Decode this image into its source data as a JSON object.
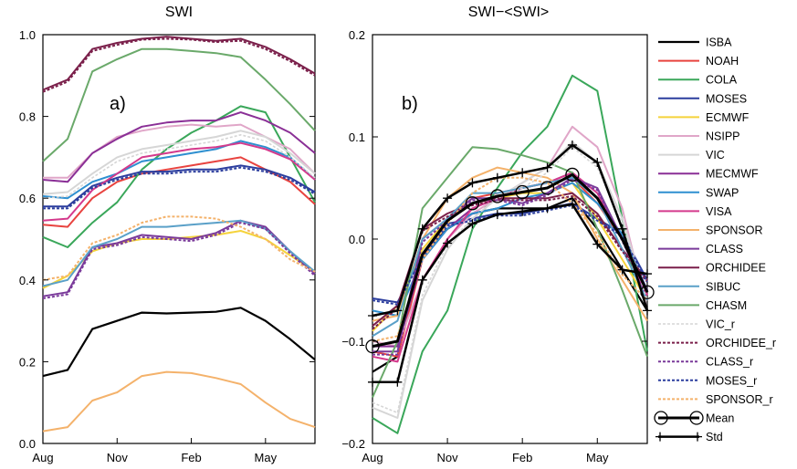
{
  "chart_data": [
    {
      "type": "line",
      "panel_label": "a)",
      "title": "SWI",
      "xlabel": "",
      "ylabel": "",
      "x_ticks": [
        "Aug",
        "Nov",
        "Feb",
        "May"
      ],
      "x": [
        1,
        2,
        3,
        4,
        5,
        6,
        7,
        8,
        9,
        10,
        11,
        12
      ],
      "ylim": [
        0.0,
        1.0
      ],
      "y_ticks": [
        "0.0",
        "0.2",
        "0.4",
        "0.6",
        "0.8",
        "1.0"
      ],
      "series": [
        {
          "name": "ISBA",
          "color": "#000000",
          "width": 2.2,
          "dash": "",
          "values": [
            0.165,
            0.18,
            0.28,
            0.3,
            0.32,
            0.318,
            0.32,
            0.322,
            0.332,
            0.3,
            0.255,
            0.205
          ]
        },
        {
          "name": "NOAH",
          "color": "#e8433f",
          "width": 2,
          "dash": "",
          "values": [
            0.535,
            0.53,
            0.6,
            0.64,
            0.66,
            0.67,
            0.68,
            0.69,
            0.7,
            0.67,
            0.64,
            0.585
          ]
        },
        {
          "name": "COLA",
          "color": "#3aa75a",
          "width": 2,
          "dash": "",
          "values": [
            0.505,
            0.48,
            0.54,
            0.59,
            0.67,
            0.72,
            0.76,
            0.79,
            0.825,
            0.81,
            0.7,
            0.59
          ]
        },
        {
          "name": "MOSES",
          "color": "#2c3e9e",
          "width": 2,
          "dash": "",
          "values": [
            0.58,
            0.58,
            0.63,
            0.65,
            0.665,
            0.665,
            0.67,
            0.67,
            0.68,
            0.67,
            0.65,
            0.615
          ]
        },
        {
          "name": "ECMWF",
          "color": "#f5d33b",
          "width": 2,
          "dash": "",
          "values": [
            0.38,
            0.41,
            0.47,
            0.49,
            0.5,
            0.5,
            0.505,
            0.51,
            0.52,
            0.5,
            0.46,
            0.42
          ]
        },
        {
          "name": "NSIPP",
          "color": "#e0a6c8",
          "width": 2,
          "dash": "",
          "values": [
            0.65,
            0.65,
            0.71,
            0.75,
            0.765,
            0.775,
            0.78,
            0.775,
            0.78,
            0.75,
            0.72,
            0.66
          ]
        },
        {
          "name": "VIC",
          "color": "#d6d6d6",
          "width": 2,
          "dash": "",
          "values": [
            0.61,
            0.615,
            0.66,
            0.7,
            0.72,
            0.73,
            0.74,
            0.75,
            0.765,
            0.75,
            0.71,
            0.66
          ]
        },
        {
          "name": "MECMWF",
          "color": "#8a2f96",
          "width": 2,
          "dash": "",
          "values": [
            0.645,
            0.64,
            0.71,
            0.745,
            0.775,
            0.785,
            0.79,
            0.79,
            0.81,
            0.79,
            0.76,
            0.71
          ]
        },
        {
          "name": "SWAP",
          "color": "#2e8fd0",
          "width": 2,
          "dash": "",
          "values": [
            0.605,
            0.6,
            0.64,
            0.66,
            0.69,
            0.7,
            0.71,
            0.72,
            0.74,
            0.725,
            0.7,
            0.645
          ]
        },
        {
          "name": "VISA",
          "color": "#d43a8c",
          "width": 2,
          "dash": "",
          "values": [
            0.545,
            0.55,
            0.62,
            0.66,
            0.7,
            0.71,
            0.72,
            0.725,
            0.735,
            0.72,
            0.695,
            0.645
          ]
        },
        {
          "name": "SPONSOR",
          "color": "#f4b26b",
          "width": 2,
          "dash": "",
          "values": [
            0.03,
            0.04,
            0.105,
            0.125,
            0.165,
            0.175,
            0.172,
            0.16,
            0.145,
            0.1,
            0.06,
            0.04
          ]
        },
        {
          "name": "CLASS",
          "color": "#7a3a9a",
          "width": 2,
          "dash": "",
          "values": [
            0.36,
            0.37,
            0.48,
            0.49,
            0.51,
            0.505,
            0.5,
            0.515,
            0.545,
            0.53,
            0.47,
            0.415
          ]
        },
        {
          "name": "ORCHIDEE",
          "color": "#7a1f4a",
          "width": 2,
          "dash": "",
          "values": [
            0.865,
            0.89,
            0.965,
            0.98,
            0.99,
            0.995,
            0.99,
            0.985,
            0.99,
            0.97,
            0.94,
            0.905
          ]
        },
        {
          "name": "SIBUC",
          "color": "#5aa0c8",
          "width": 2,
          "dash": "",
          "values": [
            0.385,
            0.4,
            0.48,
            0.5,
            0.53,
            0.53,
            0.535,
            0.54,
            0.545,
            0.525,
            0.47,
            0.42
          ]
        },
        {
          "name": "CHASM",
          "color": "#6aa96a",
          "width": 2,
          "dash": "",
          "values": [
            0.69,
            0.745,
            0.91,
            0.94,
            0.965,
            0.965,
            0.96,
            0.955,
            0.945,
            0.89,
            0.83,
            0.765
          ]
        },
        {
          "name": "VIC_r",
          "color": "#d6d6d6",
          "width": 1.6,
          "dash": "3,2",
          "values": [
            0.6,
            0.605,
            0.65,
            0.69,
            0.71,
            0.72,
            0.73,
            0.74,
            0.755,
            0.74,
            0.7,
            0.65
          ]
        },
        {
          "name": "ORCHIDEE_r",
          "color": "#7a1f4a",
          "width": 2,
          "dash": "3,2",
          "values": [
            0.86,
            0.885,
            0.96,
            0.975,
            0.988,
            0.99,
            0.988,
            0.982,
            0.985,
            0.965,
            0.935,
            0.9
          ]
        },
        {
          "name": "CLASS_r",
          "color": "#7a3a9a",
          "width": 2,
          "dash": "3,2",
          "values": [
            0.355,
            0.365,
            0.475,
            0.485,
            0.505,
            0.5,
            0.495,
            0.51,
            0.54,
            0.525,
            0.465,
            0.41
          ]
        },
        {
          "name": "MOSES_r",
          "color": "#2c3e9e",
          "width": 2,
          "dash": "3,2",
          "values": [
            0.575,
            0.575,
            0.625,
            0.645,
            0.66,
            0.66,
            0.665,
            0.665,
            0.675,
            0.665,
            0.645,
            0.61
          ]
        },
        {
          "name": "SPONSOR_r",
          "color": "#f4b26b",
          "width": 2,
          "dash": "3,2",
          "values": [
            0.4,
            0.41,
            0.49,
            0.51,
            0.54,
            0.555,
            0.555,
            0.55,
            0.53,
            0.5,
            0.45,
            0.42
          ]
        }
      ]
    },
    {
      "type": "line",
      "panel_label": "b)",
      "title": "SWI−<SWI>",
      "xlabel": "",
      "ylabel": "",
      "x_ticks": [
        "Aug",
        "Nov",
        "Feb",
        "May"
      ],
      "x": [
        1,
        2,
        3,
        4,
        5,
        6,
        7,
        8,
        9,
        10,
        11,
        12
      ],
      "ylim": [
        -0.2,
        0.2
      ],
      "y_ticks": [
        "−0.2",
        "−0.1",
        "0.0",
        "0.1",
        "0.2"
      ],
      "series": [
        {
          "name": "ISBA",
          "color": "#000000",
          "width": 2.2,
          "dash": "",
          "values": [
            -0.13,
            -0.115,
            -0.015,
            0.01,
            0.025,
            0.03,
            0.03,
            0.03,
            0.04,
            0.01,
            -0.03,
            -0.07
          ]
        },
        {
          "name": "NOAH",
          "color": "#e8433f",
          "width": 2,
          "dash": "",
          "values": [
            -0.11,
            -0.115,
            -0.02,
            0.02,
            0.04,
            0.045,
            0.05,
            0.055,
            0.06,
            0.035,
            0.0,
            -0.055
          ]
        },
        {
          "name": "COLA",
          "color": "#3aa75a",
          "width": 2,
          "dash": "",
          "values": [
            -0.175,
            -0.19,
            -0.11,
            -0.07,
            0.01,
            0.05,
            0.085,
            0.11,
            0.16,
            0.145,
            0.02,
            -0.11
          ]
        },
        {
          "name": "MOSES",
          "color": "#2c3e9e",
          "width": 2,
          "dash": "",
          "values": [
            -0.058,
            -0.062,
            -0.015,
            0.015,
            0.02,
            0.025,
            0.025,
            0.03,
            0.035,
            0.02,
            0.005,
            -0.04
          ]
        },
        {
          "name": "ECMWF",
          "color": "#f5d33b",
          "width": 2,
          "dash": "",
          "values": [
            -0.09,
            -0.065,
            -0.01,
            0.02,
            0.035,
            0.04,
            0.045,
            0.045,
            0.055,
            0.02,
            -0.02,
            -0.06
          ]
        },
        {
          "name": "NSIPP",
          "color": "#e0a6c8",
          "width": 2,
          "dash": "",
          "values": [
            -0.1,
            -0.105,
            -0.04,
            0.0,
            0.025,
            0.04,
            0.055,
            0.07,
            0.11,
            0.09,
            0.03,
            -0.07
          ]
        },
        {
          "name": "VIC",
          "color": "#d6d6d6",
          "width": 2,
          "dash": "",
          "values": [
            -0.165,
            -0.175,
            -0.06,
            -0.01,
            0.02,
            0.04,
            0.055,
            0.07,
            0.095,
            0.075,
            0.02,
            -0.06
          ]
        },
        {
          "name": "MECMWF",
          "color": "#8a2f96",
          "width": 2,
          "dash": "",
          "values": [
            -0.105,
            -0.105,
            -0.02,
            0.01,
            0.03,
            0.04,
            0.05,
            0.055,
            0.065,
            0.04,
            0.0,
            -0.06
          ]
        },
        {
          "name": "SWAP",
          "color": "#2e8fd0",
          "width": 2,
          "dash": "",
          "values": [
            -0.07,
            -0.075,
            -0.02,
            0.01,
            0.025,
            0.03,
            0.04,
            0.045,
            0.055,
            0.035,
            0.005,
            -0.05
          ]
        },
        {
          "name": "VISA",
          "color": "#d43a8c",
          "width": 2,
          "dash": "",
          "values": [
            -0.115,
            -0.12,
            -0.04,
            0.0,
            0.03,
            0.04,
            0.05,
            0.055,
            0.065,
            0.045,
            0.0,
            -0.055
          ]
        },
        {
          "name": "SPONSOR",
          "color": "#f4b26b",
          "width": 2,
          "dash": "",
          "values": [
            -0.08,
            -0.075,
            0.0,
            0.04,
            0.06,
            0.07,
            0.065,
            0.06,
            0.045,
            0.0,
            -0.04,
            -0.08
          ]
        },
        {
          "name": "CLASS",
          "color": "#7a3a9a",
          "width": 2,
          "dash": "",
          "values": [
            -0.11,
            -0.11,
            0.0,
            0.02,
            0.04,
            0.04,
            0.035,
            0.045,
            0.06,
            0.05,
            0.0,
            -0.05
          ]
        },
        {
          "name": "ORCHIDEE",
          "color": "#7a1f4a",
          "width": 2,
          "dash": "",
          "values": [
            -0.085,
            -0.065,
            0.01,
            0.025,
            0.035,
            0.04,
            0.04,
            0.04,
            0.045,
            0.025,
            -0.01,
            -0.04
          ]
        },
        {
          "name": "SIBUC",
          "color": "#5aa0c8",
          "width": 2,
          "dash": "",
          "values": [
            -0.095,
            -0.08,
            0.0,
            0.02,
            0.045,
            0.045,
            0.05,
            0.055,
            0.06,
            0.04,
            -0.01,
            -0.06
          ]
        },
        {
          "name": "CHASM",
          "color": "#6aa96a",
          "width": 2,
          "dash": "",
          "values": [
            -0.155,
            -0.1,
            0.03,
            0.06,
            0.09,
            0.088,
            0.082,
            0.075,
            0.065,
            0.01,
            -0.05,
            -0.115
          ]
        },
        {
          "name": "VIC_r",
          "color": "#d6d6d6",
          "width": 1.6,
          "dash": "3,2",
          "values": [
            -0.16,
            -0.17,
            -0.055,
            -0.005,
            0.02,
            0.04,
            0.05,
            0.065,
            0.09,
            0.07,
            0.015,
            -0.06
          ]
        },
        {
          "name": "ORCHIDEE_r",
          "color": "#7a1f4a",
          "width": 2,
          "dash": "3,2",
          "values": [
            -0.088,
            -0.068,
            0.008,
            0.022,
            0.033,
            0.038,
            0.038,
            0.038,
            0.042,
            0.022,
            -0.012,
            -0.042
          ]
        },
        {
          "name": "CLASS_r",
          "color": "#7a3a9a",
          "width": 2,
          "dash": "3,2",
          "values": [
            -0.113,
            -0.113,
            -0.003,
            0.018,
            0.038,
            0.038,
            0.033,
            0.043,
            0.058,
            0.048,
            -0.002,
            -0.052
          ]
        },
        {
          "name": "MOSES_r",
          "color": "#2c3e9e",
          "width": 2,
          "dash": "3,2",
          "values": [
            -0.06,
            -0.064,
            -0.017,
            0.013,
            0.018,
            0.023,
            0.023,
            0.028,
            0.033,
            0.018,
            0.003,
            -0.042
          ]
        },
        {
          "name": "SPONSOR_r",
          "color": "#f4b26b",
          "width": 2,
          "dash": "3,2",
          "values": [
            -0.1,
            -0.095,
            -0.02,
            0.015,
            0.045,
            0.06,
            0.06,
            0.055,
            0.035,
            0.005,
            -0.035,
            -0.06
          ]
        },
        {
          "name": "Mean",
          "color": "#000000",
          "width": 3,
          "dash": "",
          "marker": "circle",
          "marker_at": [
            1,
            5,
            6,
            7,
            8,
            9,
            12
          ],
          "values": [
            -0.105,
            -0.1,
            -0.015,
            0.018,
            0.035,
            0.042,
            0.046,
            0.05,
            0.063,
            0.04,
            0.0,
            -0.052
          ]
        },
        {
          "name": "Std",
          "color": "#000000",
          "width": 2.5,
          "dash": "",
          "marker": "plus",
          "values": [
            -0.075,
            -0.07,
            0.01,
            0.04,
            0.055,
            0.06,
            0.065,
            0.07,
            0.092,
            0.075,
            0.01,
            -0.07
          ]
        },
        {
          "name": "",
          "color": "#000000",
          "width": 2.5,
          "dash": "",
          "marker": "plus",
          "values": [
            -0.14,
            -0.14,
            -0.04,
            -0.004,
            0.015,
            0.024,
            0.027,
            0.03,
            0.034,
            -0.005,
            -0.03,
            -0.034
          ]
        }
      ]
    }
  ],
  "legend": {
    "placement": "right",
    "entries": [
      "ISBA",
      "NOAH",
      "COLA",
      "MOSES",
      "ECMWF",
      "NSIPP",
      "VIC",
      "MECMWF",
      "SWAP",
      "VISA",
      "SPONSOR",
      "CLASS",
      "ORCHIDEE",
      "SIBUC",
      "CHASM",
      "VIC_r",
      "ORCHIDEE_r",
      "CLASS_r",
      "MOSES_r",
      "SPONSOR_r",
      "Mean",
      "Std"
    ]
  }
}
